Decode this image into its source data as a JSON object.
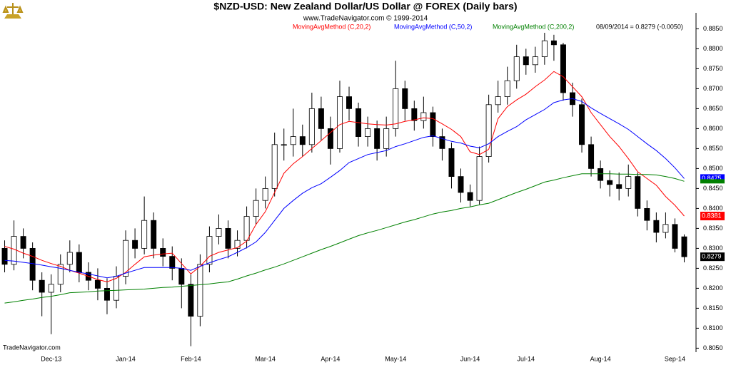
{
  "chart_data": {
    "type": "candlestick",
    "title": "$NZD-USD:  New Zealand Dollar/US Dollar @ FOREX  (Daily bars)",
    "subtitle": "www.TradeNavigator.com © 1999-2014",
    "annotation": "08/09/2014 = 0.8279 (-0.0050)",
    "source": "TradeNavigator.com",
    "categories": [
      null,
      null,
      null,
      null,
      null,
      "Dec-13",
      null,
      null,
      null,
      null,
      null,
      null,
      null,
      "Jan-14",
      null,
      null,
      null,
      null,
      null,
      null,
      "Feb-14",
      null,
      null,
      null,
      null,
      null,
      null,
      null,
      "Mar-14",
      null,
      null,
      null,
      null,
      null,
      null,
      "Apr-14",
      null,
      null,
      null,
      null,
      null,
      null,
      "May-14",
      null,
      null,
      null,
      null,
      null,
      null,
      null,
      "Jun-14",
      null,
      null,
      null,
      null,
      null,
      "Jul-14",
      null,
      null,
      null,
      null,
      null,
      null,
      null,
      "Aug-14",
      null,
      null,
      null,
      null,
      null,
      null,
      null,
      "Sep-14",
      null
    ],
    "open": [
      0.83,
      0.826,
      0.833,
      0.83,
      0.822,
      0.819,
      0.821,
      0.826,
      0.829,
      0.824,
      0.822,
      0.82,
      0.817,
      0.823,
      0.832,
      0.83,
      0.837,
      0.83,
      0.828,
      0.825,
      0.821,
      0.813,
      0.826,
      0.833,
      0.835,
      0.83,
      0.832,
      0.838,
      0.842,
      0.845,
      0.856,
      0.856,
      0.858,
      0.856,
      0.865,
      0.86,
      0.855,
      0.868,
      0.865,
      0.858,
      0.86,
      0.855,
      0.86,
      0.87,
      0.865,
      0.862,
      0.864,
      0.858,
      0.855,
      0.848,
      0.844,
      0.842,
      0.853,
      0.866,
      0.868,
      0.872,
      0.878,
      0.876,
      0.878,
      0.882,
      0.881,
      0.869,
      0.866,
      0.856,
      0.85,
      0.847,
      0.846,
      0.845,
      0.848,
      0.84,
      0.837,
      0.834,
      0.836,
      0.8329
    ],
    "high": [
      0.832,
      0.837,
      0.835,
      0.8315,
      0.824,
      0.8235,
      0.8285,
      0.832,
      0.831,
      0.8265,
      0.825,
      0.8225,
      0.8255,
      0.8345,
      0.835,
      0.843,
      0.839,
      0.8325,
      0.8305,
      0.8275,
      0.8235,
      0.8285,
      0.8355,
      0.8385,
      0.837,
      0.8345,
      0.8405,
      0.845,
      0.848,
      0.859,
      0.86,
      0.865,
      0.861,
      0.869,
      0.868,
      0.863,
      0.872,
      0.8705,
      0.8665,
      0.863,
      0.862,
      0.863,
      0.877,
      0.872,
      0.867,
      0.868,
      0.8655,
      0.86,
      0.8565,
      0.85,
      0.846,
      0.8555,
      0.8685,
      0.872,
      0.8755,
      0.881,
      0.88,
      0.8805,
      0.884,
      0.8835,
      0.8815,
      0.8715,
      0.8675,
      0.858,
      0.852,
      0.8495,
      0.849,
      0.851,
      0.849,
      0.842,
      0.839,
      0.839,
      0.8375,
      0.8335
    ],
    "low": [
      0.824,
      0.8245,
      0.8275,
      0.8195,
      0.813,
      0.8085,
      0.819,
      0.824,
      0.8215,
      0.8195,
      0.817,
      0.8135,
      0.815,
      0.821,
      0.8275,
      0.8285,
      0.8275,
      0.8255,
      0.822,
      0.815,
      0.8055,
      0.8105,
      0.824,
      0.831,
      0.8275,
      0.828,
      0.83,
      0.836,
      0.84,
      0.843,
      0.852,
      0.853,
      0.853,
      0.854,
      0.857,
      0.851,
      0.854,
      0.862,
      0.8555,
      0.8555,
      0.852,
      0.853,
      0.858,
      0.862,
      0.8595,
      0.86,
      0.8555,
      0.852,
      0.845,
      0.8415,
      0.8405,
      0.841,
      0.8515,
      0.864,
      0.866,
      0.87,
      0.8735,
      0.874,
      0.876,
      0.877,
      0.867,
      0.863,
      0.854,
      0.848,
      0.845,
      0.843,
      0.842,
      0.843,
      0.838,
      0.8345,
      0.8315,
      0.8325,
      0.829,
      0.8265
    ],
    "close": [
      0.826,
      0.833,
      0.83,
      0.822,
      0.819,
      0.821,
      0.826,
      0.829,
      0.824,
      0.822,
      0.82,
      0.817,
      0.823,
      0.832,
      0.83,
      0.837,
      0.83,
      0.828,
      0.825,
      0.821,
      0.813,
      0.826,
      0.833,
      0.835,
      0.83,
      0.832,
      0.838,
      0.842,
      0.845,
      0.856,
      0.856,
      0.858,
      0.856,
      0.865,
      0.86,
      0.855,
      0.868,
      0.865,
      0.858,
      0.86,
      0.855,
      0.86,
      0.87,
      0.865,
      0.862,
      0.864,
      0.858,
      0.855,
      0.848,
      0.844,
      0.842,
      0.853,
      0.866,
      0.868,
      0.872,
      0.878,
      0.876,
      0.878,
      0.882,
      0.881,
      0.869,
      0.866,
      0.856,
      0.85,
      0.847,
      0.846,
      0.845,
      0.848,
      0.84,
      0.837,
      0.834,
      0.836,
      0.83,
      0.8279
    ],
    "close_label": "0.8279",
    "candle_color": "#000000",
    "series": [
      {
        "name": "MovingAvgMethod (C,20,2)",
        "color": "#ff0000",
        "last_label": "0.8381",
        "values": [
          0.8305,
          0.8298,
          0.8288,
          0.828,
          0.827,
          0.8262,
          0.8255,
          0.8245,
          0.8238,
          0.823,
          0.8222,
          0.8216,
          0.8225,
          0.824,
          0.826,
          0.8279,
          0.8283,
          0.8286,
          0.8288,
          0.8262,
          0.8236,
          0.8255,
          0.828,
          0.829,
          0.8296,
          0.8302,
          0.8318,
          0.836,
          0.8392,
          0.844,
          0.8488,
          0.8512,
          0.853,
          0.855,
          0.857,
          0.859,
          0.861,
          0.8618,
          0.8615,
          0.8612,
          0.861,
          0.8609,
          0.8612,
          0.8618,
          0.8622,
          0.8627,
          0.8625,
          0.8612,
          0.8598,
          0.858,
          0.8542,
          0.8535,
          0.8548,
          0.8625,
          0.8655,
          0.8672,
          0.8686,
          0.8705,
          0.8722,
          0.8743,
          0.873,
          0.8705,
          0.868,
          0.864,
          0.861,
          0.858,
          0.8555,
          0.8525,
          0.8492,
          0.8475,
          0.8458,
          0.843,
          0.8408,
          0.8381
        ]
      },
      {
        "name": "MovingAvgMethod (C,50,2)",
        "color": "#0000ff",
        "last_label": "0.8475",
        "values": [
          0.827,
          0.8268,
          0.8265,
          0.8262,
          0.8258,
          0.8254,
          0.825,
          0.8245,
          0.824,
          0.8236,
          0.8231,
          0.8226,
          0.823,
          0.8238,
          0.8245,
          0.8252,
          0.8252,
          0.8252,
          0.8252,
          0.825,
          0.8245,
          0.8255,
          0.8264,
          0.8272,
          0.8279,
          0.829,
          0.8302,
          0.8316,
          0.834,
          0.837,
          0.84,
          0.842,
          0.8438,
          0.8452,
          0.8462,
          0.8478,
          0.8495,
          0.8515,
          0.8525,
          0.8535,
          0.854,
          0.8545,
          0.8555,
          0.8562,
          0.857,
          0.8578,
          0.8582,
          0.8575,
          0.8568,
          0.8564,
          0.8556,
          0.8552,
          0.8562,
          0.858,
          0.8593,
          0.8605,
          0.8622,
          0.8635,
          0.8648,
          0.8665,
          0.8672,
          0.8675,
          0.8668,
          0.8652,
          0.8638,
          0.8625,
          0.8612,
          0.8598,
          0.858,
          0.8562,
          0.8545,
          0.8525,
          0.8502,
          0.8475
        ]
      },
      {
        "name": "MovingAvgMethod (C,200,2)",
        "color": "#008000",
        "values": [
          0.8163,
          0.8166,
          0.817,
          0.8173,
          0.8177,
          0.818,
          0.8184,
          0.8189,
          0.819,
          0.8191,
          0.8193,
          0.8194,
          0.8195,
          0.8196,
          0.8197,
          0.8198,
          0.82,
          0.8202,
          0.8203,
          0.8205,
          0.8207,
          0.8209,
          0.8211,
          0.8214,
          0.8216,
          0.8223,
          0.8231,
          0.8238,
          0.8246,
          0.8253,
          0.8261,
          0.827,
          0.8279,
          0.8288,
          0.8297,
          0.8305,
          0.8314,
          0.8323,
          0.8332,
          0.8339,
          0.8345,
          0.8352,
          0.8359,
          0.8366,
          0.8372,
          0.8379,
          0.8386,
          0.8391,
          0.8395,
          0.84,
          0.8404,
          0.8409,
          0.8413,
          0.8422,
          0.8431,
          0.844,
          0.8448,
          0.8457,
          0.8466,
          0.8471,
          0.8477,
          0.8482,
          0.8487,
          0.8487,
          0.8487,
          0.8487,
          0.8486,
          0.8486,
          0.8485,
          0.8485,
          0.8484,
          0.848,
          0.8475,
          0.8468
        ]
      }
    ],
    "ylim": [
      0.804,
      0.889
    ],
    "yticks": [
      {
        "value": 0.805,
        "label": "0.8050"
      },
      {
        "value": 0.81,
        "label": "0.8100"
      },
      {
        "value": 0.815,
        "label": "0.8150"
      },
      {
        "value": 0.82,
        "label": "0.8200"
      },
      {
        "value": 0.825,
        "label": "0.8250"
      },
      {
        "value": 0.83,
        "label": "0.8300"
      },
      {
        "value": 0.835,
        "label": "0.8350"
      },
      {
        "value": 0.84,
        "label": "0.8400"
      },
      {
        "value": 0.845,
        "label": "0.8450"
      },
      {
        "value": 0.85,
        "label": "0.8500"
      },
      {
        "value": 0.855,
        "label": "0.8550"
      },
      {
        "value": 0.86,
        "label": "0.8600"
      },
      {
        "value": 0.865,
        "label": "0.8650"
      },
      {
        "value": 0.87,
        "label": "0.8700"
      },
      {
        "value": 0.875,
        "label": "0.8750"
      },
      {
        "value": 0.88,
        "label": "0.8800"
      },
      {
        "value": 0.885,
        "label": "0.8850"
      }
    ],
    "grid": false
  }
}
